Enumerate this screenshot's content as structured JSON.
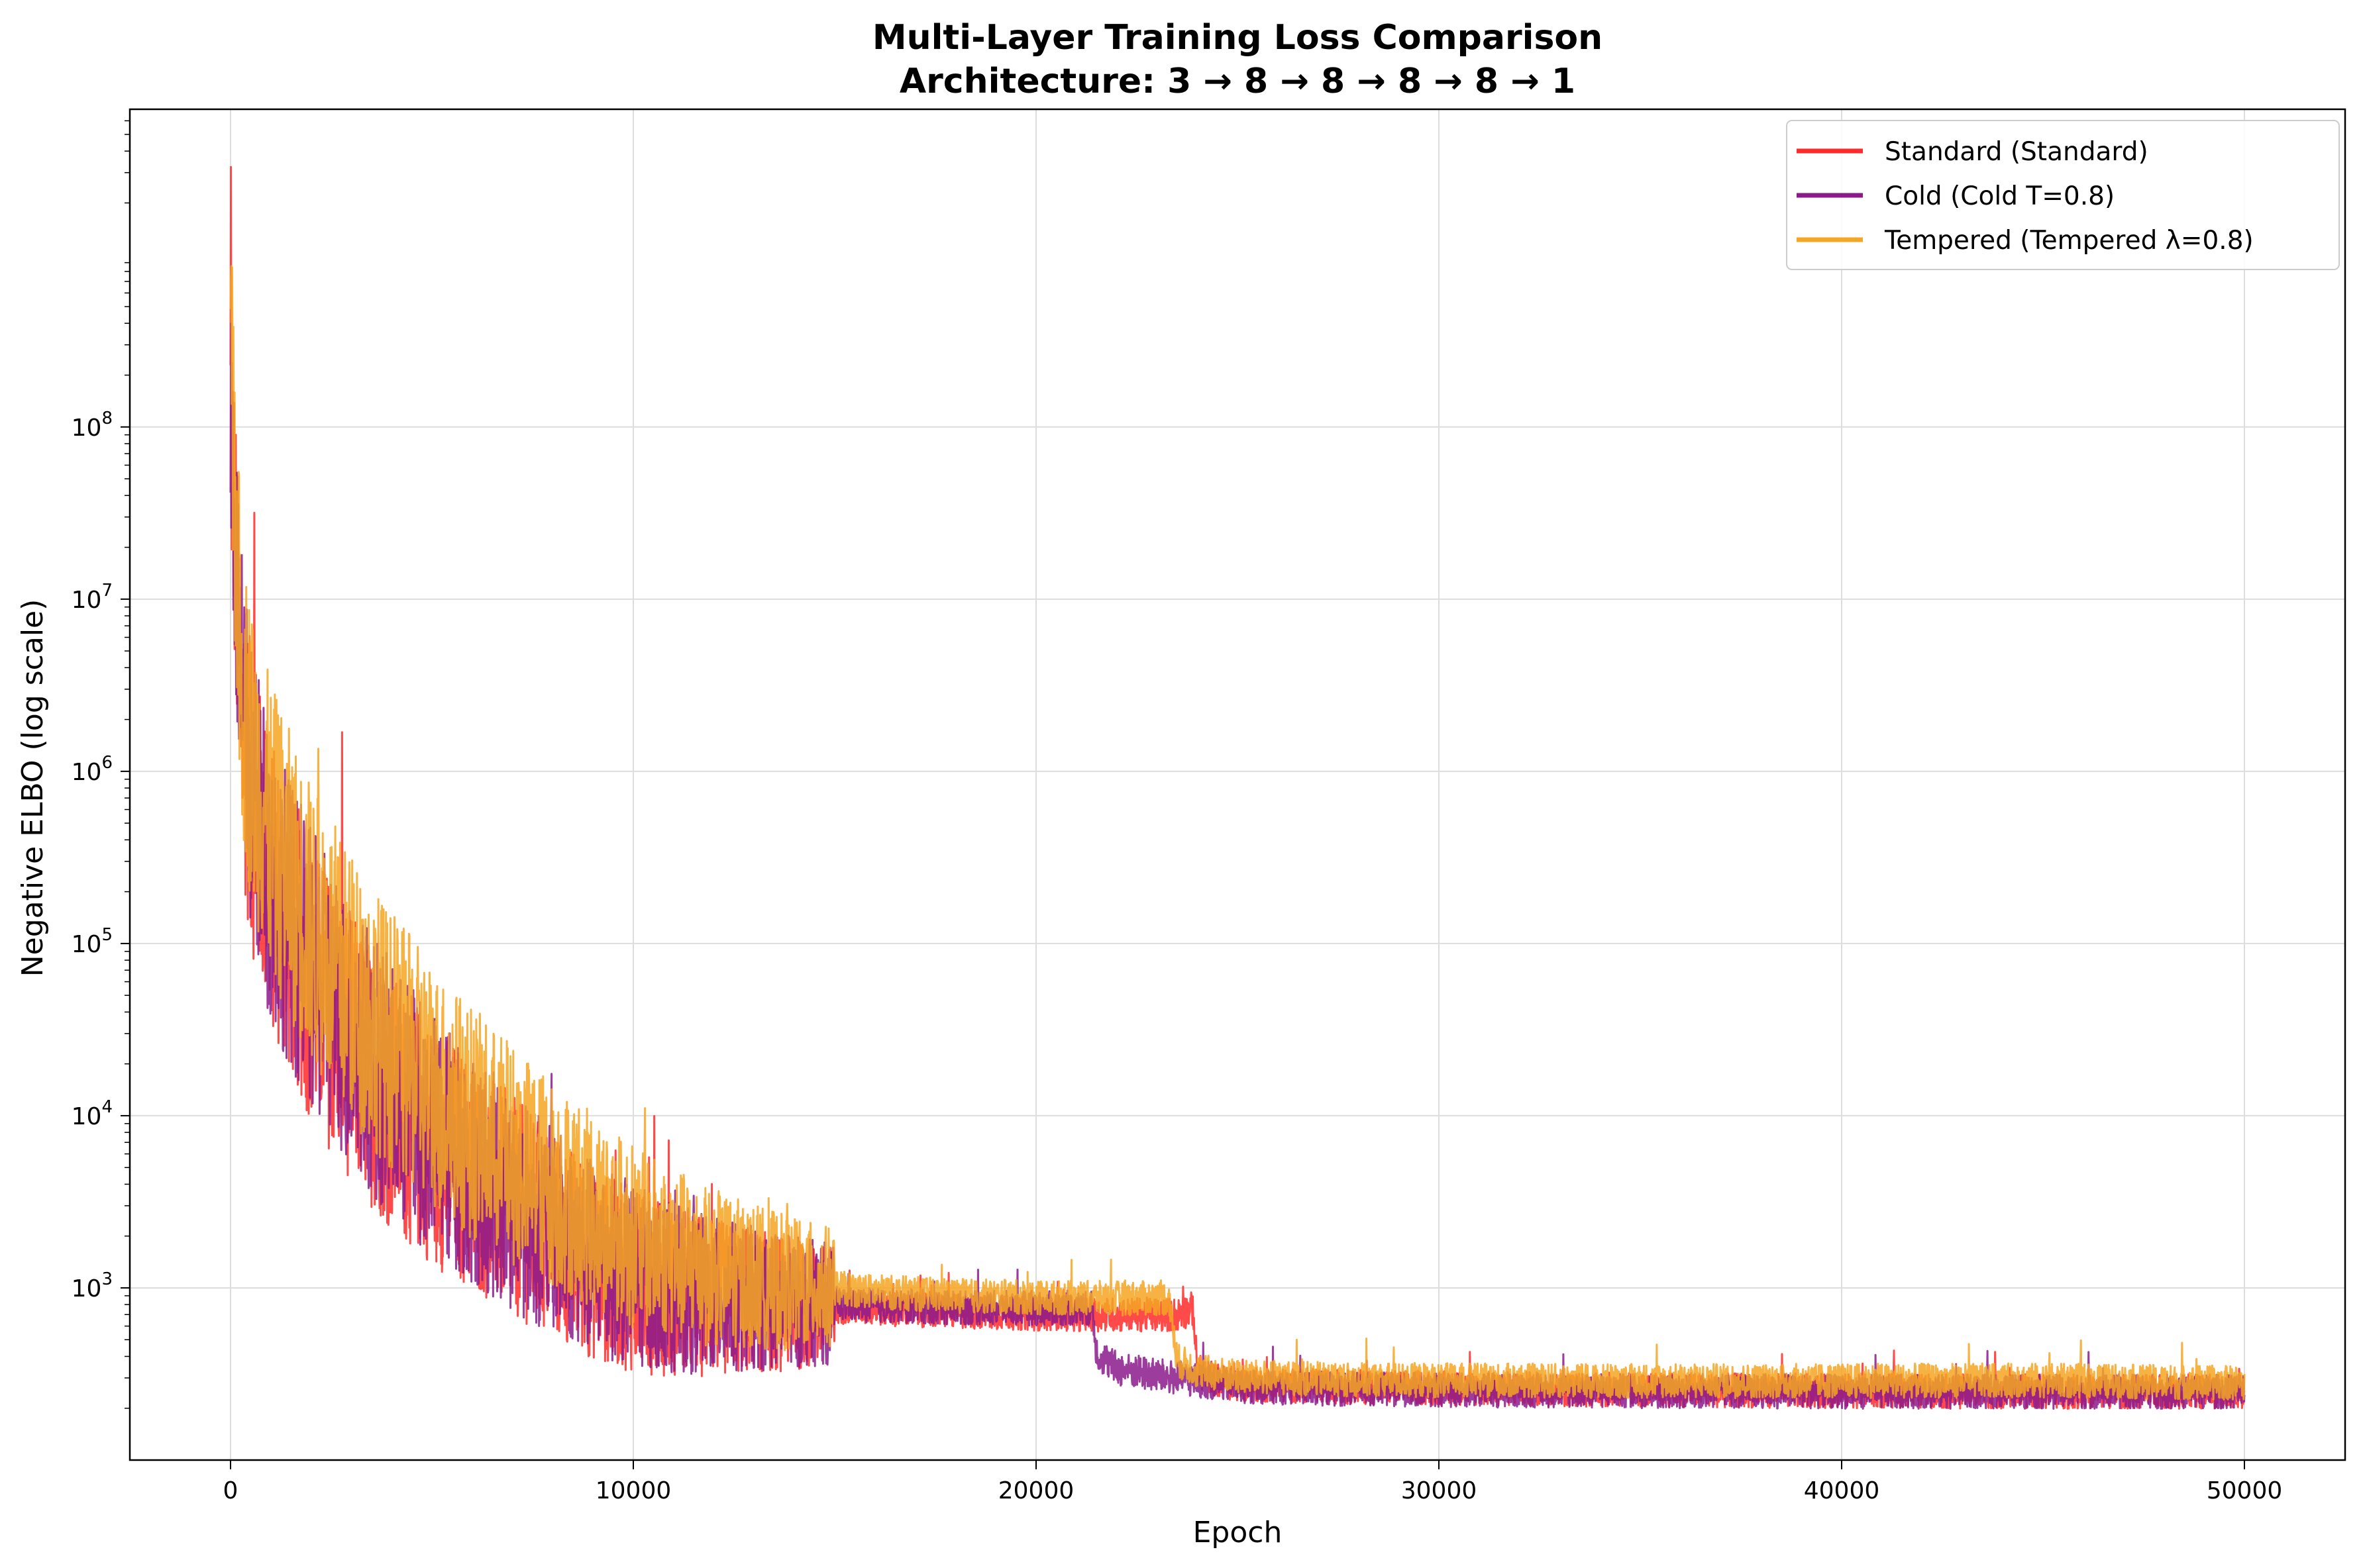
{
  "chart_data": {
    "type": "line",
    "title": "Multi-Layer Training Loss Comparison",
    "subtitle": "Architecture: 3 → 8 → 8 → 8 → 8 → 1",
    "xlabel": "Epoch",
    "ylabel": "Negative ELBO (log scale)",
    "y_scale": "log",
    "xlim": [
      -2500,
      52500
    ],
    "ylim": [
      100,
      7000000000
    ],
    "x_ticks": [
      0,
      10000,
      20000,
      30000,
      40000,
      50000
    ],
    "x_tick_labels": [
      "0",
      "10000",
      "20000",
      "30000",
      "40000",
      "50000"
    ],
    "y_ticks": [
      1000,
      10000,
      100000,
      1000000,
      10000000,
      100000000
    ],
    "y_tick_labels": [
      {
        "base": "10",
        "exp": "3"
      },
      {
        "base": "10",
        "exp": "4"
      },
      {
        "base": "10",
        "exp": "5"
      },
      {
        "base": "10",
        "exp": "6"
      },
      {
        "base": "10",
        "exp": "7"
      },
      {
        "base": "10",
        "exp": "8"
      }
    ],
    "grid": true,
    "legend_position": "top-right",
    "series": [
      {
        "name": "Standard (Standard)",
        "color": "#ff2a2a",
        "x": [
          0,
          250,
          500,
          1000,
          2000,
          3000,
          4000,
          5000,
          6000,
          7000,
          8000,
          9000,
          10000,
          11000,
          12000,
          14000,
          16000,
          18000,
          20000,
          22000,
          23500,
          23900,
          24000,
          24500,
          25000,
          27000,
          30000,
          35000,
          40000,
          45000,
          50000
        ],
        "y": [
          120000000,
          2500000,
          700000,
          220000,
          60000,
          25000,
          12000,
          7000,
          4500,
          3000,
          2000,
          1400,
          1100,
          950,
          870,
          800,
          760,
          730,
          710,
          700,
          700,
          760,
          330,
          290,
          275,
          268,
          262,
          255,
          252,
          250,
          250
        ]
      },
      {
        "name": "Cold (Cold T=0.8)",
        "color": "#8b1a8b",
        "x": [
          0,
          250,
          500,
          1000,
          2000,
          3000,
          4000,
          5000,
          6000,
          7000,
          8000,
          9000,
          10000,
          11000,
          12000,
          14000,
          16000,
          18000,
          20000,
          21400,
          21500,
          22000,
          23000,
          24000,
          25000,
          26000,
          28000,
          30000,
          35000,
          40000,
          45000,
          50000
        ],
        "y": [
          130000000,
          2800000,
          800000,
          250000,
          70000,
          30000,
          14000,
          8000,
          5000,
          3200,
          2200,
          1500,
          1200,
          1000,
          900,
          830,
          790,
          770,
          760,
          760,
          420,
          340,
          310,
          290,
          270,
          262,
          258,
          255,
          252,
          250,
          250,
          250
        ]
      },
      {
        "name": "Tempered (Tempered λ=0.8)",
        "color": "#f5a623",
        "x": [
          0,
          250,
          500,
          1000,
          2000,
          3000,
          4000,
          5000,
          6000,
          7000,
          8000,
          9000,
          10000,
          11000,
          12000,
          14000,
          16000,
          18000,
          20000,
          22000,
          23300,
          23500,
          24000,
          25000,
          27000,
          30000,
          35000,
          40000,
          45000,
          50000
        ],
        "y": [
          200000000,
          4000000,
          1300000,
          450000,
          130000,
          55000,
          27000,
          15000,
          9000,
          6000,
          4000,
          2800,
          2000,
          1600,
          1300,
          1050,
          950,
          900,
          880,
          870,
          870,
          380,
          330,
          305,
          295,
          290,
          288,
          288,
          290,
          280
        ]
      }
    ]
  }
}
